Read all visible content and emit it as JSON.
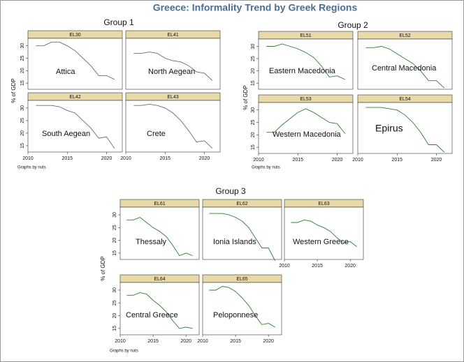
{
  "title": "Greece: Informality Trend by Greek Regions",
  "groups": [
    {
      "title": "Group 1",
      "ylabel": "% of GDP",
      "note": "Graphs by nuts",
      "chart_data": [
        {
          "type": "line",
          "label": "EL30",
          "annotation": "Attica",
          "color": "#6b6b6b",
          "x": [
            2011,
            2012,
            2013,
            2014,
            2015,
            2016,
            2017,
            2018,
            2019,
            2020,
            2021
          ],
          "values": [
            30,
            30,
            31.5,
            31.5,
            30,
            28,
            25,
            22,
            18,
            18,
            16.5
          ],
          "xlim": [
            2010,
            2022
          ],
          "ylim": [
            12.5,
            33
          ],
          "yticks": [
            15,
            20,
            25,
            30
          ]
        },
        {
          "type": "line",
          "label": "EL41",
          "annotation": "North Aegean",
          "color": "#6b6b6b",
          "x": [
            2011,
            2012,
            2013,
            2014,
            2015,
            2016,
            2017,
            2018,
            2019,
            2020,
            2021
          ],
          "values": [
            27,
            27,
            27.5,
            27,
            25,
            24,
            23.5,
            22,
            19.5,
            19,
            16
          ],
          "xlim": [
            2010,
            2022
          ],
          "ylim": [
            12.5,
            33
          ]
        },
        {
          "type": "line",
          "label": "EL42",
          "annotation": "South Aegean",
          "color": "#6b6b6b",
          "x": [
            2011,
            2012,
            2013,
            2014,
            2015,
            2016,
            2017,
            2018,
            2019,
            2020,
            2021
          ],
          "values": [
            31,
            31,
            31,
            30.5,
            29,
            28,
            25,
            22,
            18,
            18.5,
            14
          ],
          "xlim": [
            2010,
            2022
          ],
          "ylim": [
            12.5,
            33
          ],
          "yticks": [
            15,
            20,
            25,
            30
          ],
          "xticks": [
            2010,
            2015,
            2020
          ]
        },
        {
          "type": "line",
          "label": "EL43",
          "annotation": "Crete",
          "color": "#6b6b6b",
          "x": [
            2011,
            2012,
            2013,
            2014,
            2015,
            2016,
            2017,
            2018,
            2019,
            2020,
            2021
          ],
          "values": [
            31,
            31,
            31.5,
            31,
            30,
            28,
            25,
            21,
            16.5,
            17,
            14
          ],
          "xlim": [
            2010,
            2022
          ],
          "ylim": [
            12.5,
            33
          ],
          "xticks": [
            2010,
            2015,
            2020
          ]
        }
      ]
    },
    {
      "title": "Group 2",
      "ylabel": "% of GDP",
      "note": "Graphs by nuts",
      "chart_data": [
        {
          "type": "line",
          "label": "EL51",
          "annotation": "Eastern Macedonia",
          "color": "#2e7d32",
          "x": [
            2011,
            2012,
            2013,
            2014,
            2015,
            2016,
            2017,
            2018,
            2019,
            2020,
            2021
          ],
          "values": [
            30,
            30,
            31,
            30,
            29,
            27.5,
            25.5,
            22,
            17.5,
            18,
            16.5
          ],
          "xlim": [
            2010,
            2022
          ],
          "ylim": [
            12.5,
            33
          ],
          "yticks": [
            15,
            20,
            25,
            30
          ]
        },
        {
          "type": "line",
          "label": "EL52",
          "annotation": "Central Macedonia",
          "color": "#2e7d32",
          "x": [
            2011,
            2012,
            2013,
            2014,
            2015,
            2016,
            2017,
            2018,
            2019,
            2020,
            2021
          ],
          "values": [
            29.5,
            29.5,
            30,
            29,
            27,
            25,
            23,
            20,
            16,
            16,
            13
          ],
          "xlim": [
            2010,
            2022
          ],
          "ylim": [
            12.5,
            33
          ]
        },
        {
          "type": "line",
          "label": "EL53",
          "annotation": "Western Macedonia",
          "color": "#2e7d32",
          "x": [
            2011,
            2012,
            2013,
            2014,
            2015,
            2016,
            2017,
            2018,
            2019,
            2020,
            2021
          ],
          "values": [
            21,
            21,
            24,
            26.5,
            29,
            30.5,
            29,
            27,
            25,
            24.5,
            20.5
          ],
          "xlim": [
            2010,
            2022
          ],
          "ylim": [
            12.5,
            33
          ],
          "yticks": [
            15,
            20,
            25,
            30
          ],
          "xticks": [
            2010,
            2015,
            2020
          ]
        },
        {
          "type": "line",
          "label": "EL54",
          "annotation": "Epirus",
          "color": "#2e7d32",
          "x": [
            2011,
            2012,
            2013,
            2014,
            2015,
            2016,
            2017,
            2018,
            2019,
            2020,
            2021
          ],
          "values": [
            31,
            31,
            31,
            30.5,
            30,
            28,
            25,
            21,
            16,
            16,
            13
          ],
          "xlim": [
            2010,
            2022
          ],
          "ylim": [
            12.5,
            33
          ],
          "xticks": [
            2010,
            2015,
            2020
          ]
        }
      ]
    },
    {
      "title": "Group 3",
      "ylabel": "% of GDP",
      "note": "Graphs by nuts",
      "chart_data": [
        {
          "type": "line",
          "label": "EL61",
          "annotation": "Thessaly",
          "color": "#2e7d32",
          "x": [
            2011,
            2012,
            2013,
            2014,
            2015,
            2016,
            2017,
            2018,
            2019,
            2020,
            2021
          ],
          "values": [
            28,
            28,
            29,
            27,
            25,
            23.5,
            21.5,
            18,
            14,
            15,
            14
          ],
          "xlim": [
            2010,
            2022
          ],
          "ylim": [
            12.5,
            33
          ],
          "yticks": [
            15,
            20,
            25,
            30
          ]
        },
        {
          "type": "line",
          "label": "EL62",
          "annotation": "Ionia Islands",
          "color": "#2e7d32",
          "x": [
            2011,
            2012,
            2013,
            2014,
            2015,
            2016,
            2017,
            2018,
            2019,
            2020,
            2021
          ],
          "values": [
            30.5,
            30.5,
            30.5,
            30,
            29,
            27.5,
            25,
            21,
            17,
            17,
            12
          ],
          "xlim": [
            2010,
            2022
          ],
          "ylim": [
            12.5,
            33
          ]
        },
        {
          "type": "line",
          "label": "EL63",
          "annotation": "Western Greece",
          "color": "#2e7d32",
          "x": [
            2011,
            2012,
            2013,
            2014,
            2015,
            2016,
            2017,
            2018,
            2019,
            2020,
            2021
          ],
          "values": [
            27,
            27,
            28,
            27.5,
            26,
            25,
            23.5,
            21,
            19,
            19.5,
            17.5
          ],
          "xlim": [
            2010,
            2022
          ],
          "ylim": [
            12.5,
            33
          ],
          "xticks": [
            2010,
            2015,
            2020
          ]
        },
        {
          "type": "line",
          "label": "EL64",
          "annotation": "Central Greece",
          "color": "#2e7d32",
          "x": [
            2011,
            2012,
            2013,
            2014,
            2015,
            2016,
            2017,
            2018,
            2019,
            2020,
            2021
          ],
          "values": [
            28,
            28,
            29,
            28.5,
            26,
            24,
            21.5,
            18,
            15,
            15.5,
            15
          ],
          "xlim": [
            2010,
            2022
          ],
          "ylim": [
            12.5,
            33
          ],
          "yticks": [
            15,
            20,
            25,
            30
          ],
          "xticks": [
            2010,
            2015,
            2020
          ]
        },
        {
          "type": "line",
          "label": "EL65",
          "annotation": "Peloponnese",
          "color": "#2e7d32",
          "x": [
            2011,
            2012,
            2013,
            2014,
            2015,
            2016,
            2017,
            2018,
            2019,
            2020,
            2021
          ],
          "values": [
            30,
            30,
            31.5,
            31,
            29.5,
            27,
            24,
            20,
            16.5,
            17,
            15.5
          ],
          "xlim": [
            2010,
            2022
          ],
          "ylim": [
            12.5,
            33
          ],
          "xticks": [
            2010,
            2015,
            2020
          ]
        }
      ]
    }
  ]
}
